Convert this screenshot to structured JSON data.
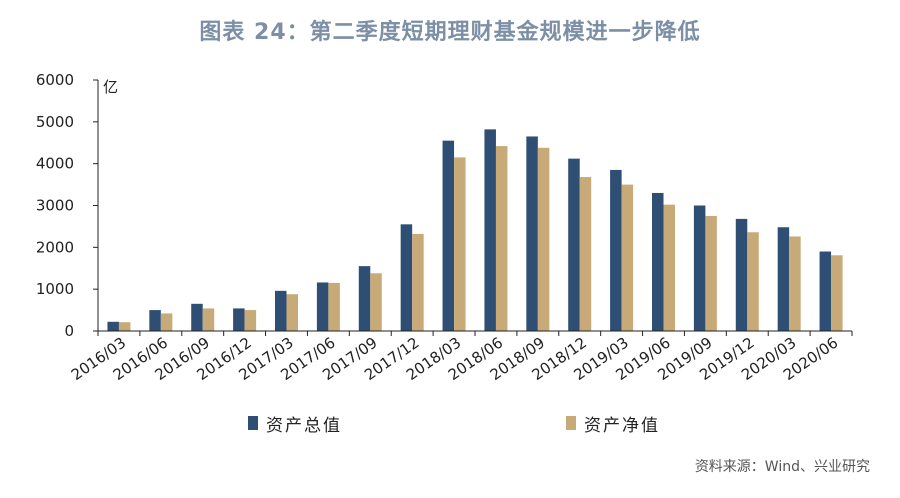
{
  "title": "图表 24：第二季度短期理财基金规模进一步降低",
  "unit": "亿",
  "source": "资料来源：Wind、兴业研究",
  "colors": {
    "total": "#2e4e74",
    "net": "#c8aa78",
    "axis": "#222222"
  },
  "chart_data": {
    "type": "bar",
    "categories": [
      "2016/03",
      "2016/06",
      "2016/09",
      "2016/12",
      "2017/03",
      "2017/06",
      "2017/09",
      "2017/12",
      "2018/03",
      "2018/06",
      "2018/09",
      "2018/12",
      "2019/03",
      "2019/06",
      "2019/09",
      "2019/12",
      "2020/03",
      "2020/06"
    ],
    "series": [
      {
        "name": "资产总值",
        "values": [
          220,
          500,
          650,
          540,
          960,
          1160,
          1550,
          2550,
          4550,
          4820,
          4650,
          4120,
          3850,
          3300,
          3000,
          2680,
          2480,
          1900
        ]
      },
      {
        "name": "资产净值",
        "values": [
          210,
          420,
          540,
          500,
          880,
          1150,
          1380,
          2320,
          4150,
          4420,
          4380,
          3680,
          3500,
          3020,
          2750,
          2360,
          2260,
          1810
        ]
      }
    ],
    "ylim": [
      0,
      6000
    ],
    "yticks": [
      0,
      1000,
      2000,
      3000,
      4000,
      5000,
      6000
    ],
    "grid": false,
    "legend": "bottom"
  }
}
